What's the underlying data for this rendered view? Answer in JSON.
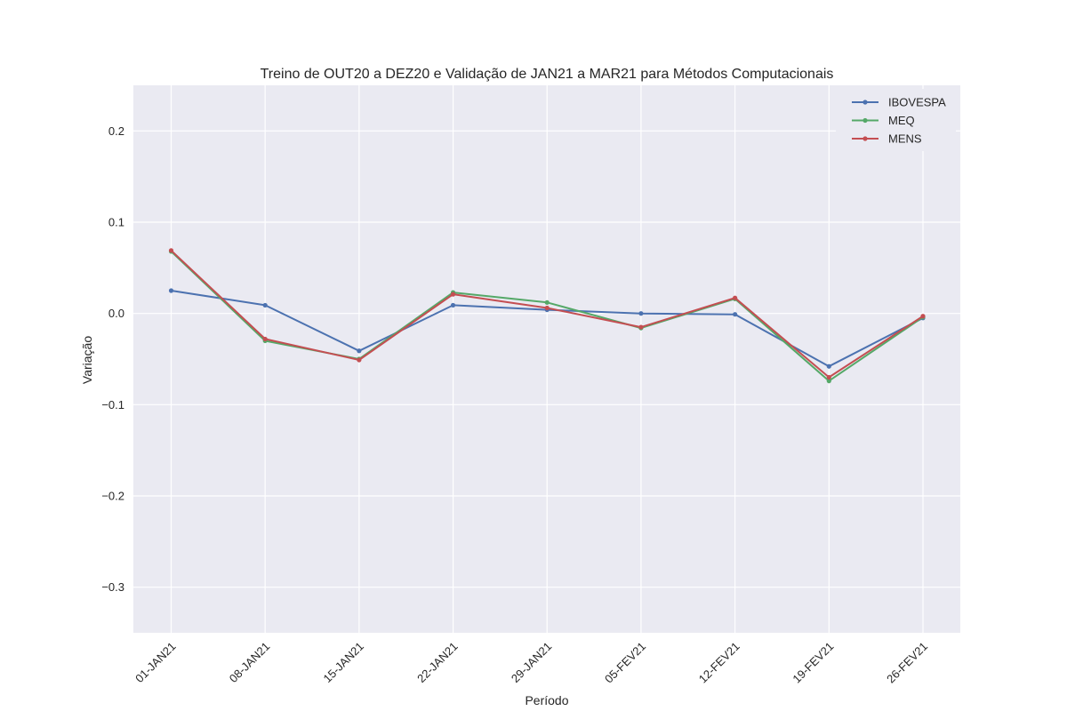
{
  "chart_data": {
    "type": "line",
    "title": "Treino de OUT20 a DEZ20 e Validação de JAN21 a MAR21 para Métodos Computacionais",
    "xlabel": "Período",
    "ylabel": "Variação",
    "categories": [
      "01-JAN21",
      "08-JAN21",
      "15-JAN21",
      "22-JAN21",
      "29-JAN21",
      "05-FEV21",
      "12-FEV21",
      "19-FEV21",
      "26-FEV21"
    ],
    "ylim": [
      -0.35,
      0.25
    ],
    "yticks": [
      0.2,
      0.1,
      0.0,
      -0.1,
      -0.2,
      -0.3
    ],
    "ytick_labels": [
      "0.2",
      "0.1",
      "0.0",
      "−0.1",
      "−0.2",
      "−0.3"
    ],
    "grid": true,
    "legend_position": "top-right",
    "series": [
      {
        "name": "IBOVESPA",
        "color": "#4c72b0",
        "values": [
          0.025,
          0.009,
          -0.041,
          0.009,
          0.004,
          0.0,
          -0.001,
          -0.058,
          -0.005
        ]
      },
      {
        "name": "MEQ",
        "color": "#55a868",
        "values": [
          0.068,
          -0.03,
          -0.05,
          0.023,
          0.012,
          -0.016,
          0.016,
          -0.074,
          -0.004
        ]
      },
      {
        "name": "MENS",
        "color": "#c44e52",
        "values": [
          0.069,
          -0.028,
          -0.051,
          0.021,
          0.006,
          -0.015,
          0.017,
          -0.07,
          -0.003
        ]
      }
    ]
  }
}
